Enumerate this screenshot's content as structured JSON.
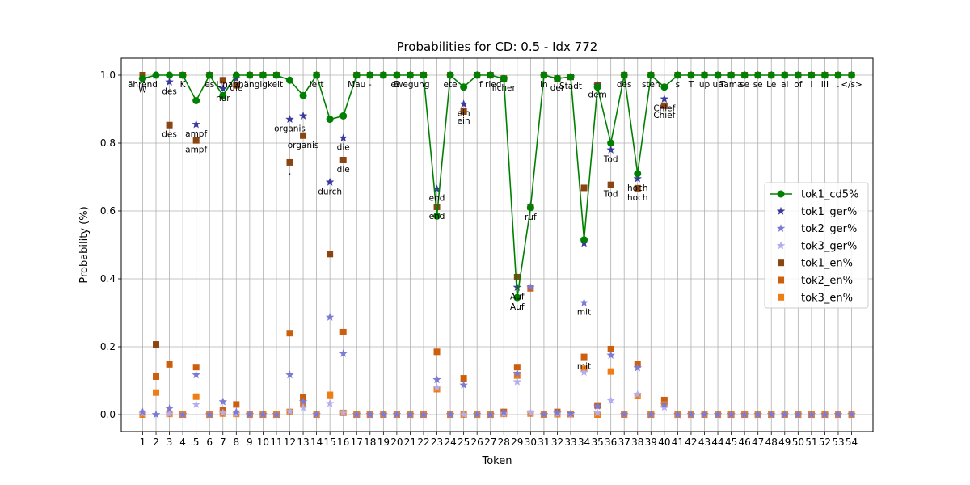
{
  "chart_data": {
    "type": "line",
    "title": "Probabilities for CD: 0.5 - Idx 772",
    "xlabel": "Token",
    "ylabel": "Probability (%)",
    "x": [
      1,
      2,
      3,
      4,
      5,
      6,
      7,
      8,
      9,
      10,
      11,
      12,
      13,
      14,
      15,
      16,
      17,
      18,
      19,
      20,
      21,
      22,
      23,
      24,
      25,
      26,
      27,
      28,
      29,
      30,
      31,
      32,
      33,
      34,
      35,
      36,
      37,
      38,
      39,
      40,
      41,
      42,
      43,
      44,
      45,
      46,
      47,
      48,
      49,
      50,
      51,
      52,
      53,
      54
    ],
    "xlim": [
      -0.6,
      55.6
    ],
    "ylim": [
      -0.05,
      1.05
    ],
    "yticks": [
      0.0,
      0.2,
      0.4,
      0.6,
      0.8,
      1.0
    ],
    "grid": true,
    "legend_position": "center-right",
    "series": [
      {
        "name": "tok1_cd5%",
        "style": "line-circle",
        "color": "#008000",
        "values": [
          0.99,
          1.0,
          1.0,
          1.0,
          0.925,
          1.0,
          0.94,
          1.0,
          1.0,
          1.0,
          1.0,
          0.985,
          0.94,
          1.0,
          0.87,
          0.88,
          1.0,
          1.0,
          1.0,
          1.0,
          1.0,
          1.0,
          0.585,
          1.0,
          0.965,
          1.0,
          1.0,
          0.99,
          0.345,
          0.61,
          1.0,
          0.99,
          0.995,
          0.515,
          0.965,
          0.8,
          1.0,
          0.71,
          1.0,
          0.965,
          1.0,
          1.0,
          1.0,
          1.0,
          1.0,
          1.0,
          1.0,
          1.0,
          1.0,
          1.0,
          1.0,
          1.0,
          1.0,
          1.0
        ]
      },
      {
        "name": "tok1_ger%",
        "style": "star",
        "color": "#3a3a9e",
        "values": [
          0.985,
          1.0,
          0.98,
          1.0,
          0.855,
          1.0,
          0.96,
          0.99,
          1.0,
          1.0,
          1.0,
          0.87,
          0.88,
          1.0,
          0.685,
          0.815,
          1.0,
          1.0,
          1.0,
          1.0,
          1.0,
          1.0,
          0.665,
          1.0,
          0.915,
          1.0,
          1.0,
          0.99,
          0.375,
          0.615,
          1.0,
          0.99,
          0.995,
          0.505,
          0.97,
          0.78,
          1.0,
          0.695,
          1.0,
          0.93,
          1.0,
          1.0,
          1.0,
          1.0,
          1.0,
          1.0,
          1.0,
          1.0,
          1.0,
          1.0,
          1.0,
          1.0,
          1.0,
          1.0
        ]
      },
      {
        "name": "tok2_ger%",
        "style": "star",
        "color": "#7b7bd6",
        "values": [
          0.008,
          0.0,
          0.018,
          0.0,
          0.117,
          0.0,
          0.038,
          0.008,
          0.0,
          0.0,
          0.0,
          0.117,
          0.038,
          0.0,
          0.287,
          0.18,
          0.0,
          0.0,
          0.0,
          0.0,
          0.0,
          0.0,
          0.103,
          0.0,
          0.087,
          0.0,
          0.0,
          0.008,
          0.122,
          0.375,
          0.0,
          0.005,
          0.003,
          0.33,
          0.025,
          0.175,
          0.0,
          0.138,
          0.0,
          0.03,
          0.0,
          0.0,
          0.0,
          0.0,
          0.0,
          0.0,
          0.0,
          0.0,
          0.0,
          0.0,
          0.0,
          0.0,
          0.0,
          0.0
        ]
      },
      {
        "name": "tok3_ger%",
        "style": "star",
        "color": "#b3aef2",
        "values": [
          0.003,
          0.0,
          0.002,
          0.0,
          0.03,
          0.0,
          0.005,
          0.002,
          0.0,
          0.0,
          0.0,
          0.01,
          0.02,
          0.0,
          0.033,
          0.005,
          0.0,
          0.0,
          0.0,
          0.0,
          0.0,
          0.0,
          0.08,
          0.0,
          0.0,
          0.0,
          0.0,
          0.002,
          0.097,
          0.005,
          0.0,
          0.002,
          0.001,
          0.125,
          0.005,
          0.042,
          0.0,
          0.06,
          0.0,
          0.022,
          0.0,
          0.0,
          0.0,
          0.0,
          0.0,
          0.0,
          0.0,
          0.0,
          0.0,
          0.0,
          0.0,
          0.0,
          0.0,
          0.0
        ]
      },
      {
        "name": "tok1_en%",
        "style": "square",
        "color": "#8b4513",
        "values": [
          1.0,
          0.207,
          0.853,
          1.0,
          0.808,
          1.0,
          0.985,
          0.97,
          1.0,
          1.0,
          1.0,
          0.743,
          0.822,
          1.0,
          0.473,
          0.75,
          1.0,
          1.0,
          1.0,
          1.0,
          1.0,
          1.0,
          0.612,
          1.0,
          0.893,
          1.0,
          1.0,
          0.99,
          0.405,
          0.612,
          1.0,
          0.99,
          0.995,
          0.668,
          0.97,
          0.677,
          1.0,
          0.667,
          1.0,
          0.91,
          1.0,
          1.0,
          1.0,
          1.0,
          1.0,
          1.0,
          1.0,
          1.0,
          1.0,
          1.0,
          1.0,
          1.0,
          1.0,
          1.0
        ]
      },
      {
        "name": "tok2_en%",
        "style": "square",
        "color": "#cc5f0e",
        "values": [
          0.0,
          0.112,
          0.148,
          0.0,
          0.14,
          0.0,
          0.012,
          0.03,
          0.002,
          0.0,
          0.0,
          0.24,
          0.05,
          0.0,
          0.058,
          0.243,
          0.0,
          0.0,
          0.0,
          0.0,
          0.0,
          0.0,
          0.185,
          0.0,
          0.107,
          0.0,
          0.0,
          0.008,
          0.14,
          0.372,
          0.0,
          0.008,
          0.002,
          0.17,
          0.027,
          0.193,
          0.002,
          0.148,
          0.0,
          0.043,
          0.0,
          0.0,
          0.0,
          0.0,
          0.0,
          0.0,
          0.0,
          0.0,
          0.0,
          0.0,
          0.0,
          0.0,
          0.0,
          0.0
        ]
      },
      {
        "name": "tok3_en%",
        "style": "square",
        "color": "#f07d12",
        "values": [
          0.0,
          0.065,
          0.002,
          0.0,
          0.053,
          0.0,
          0.003,
          0.002,
          0.0,
          0.0,
          0.0,
          0.008,
          0.03,
          0.0,
          0.058,
          0.005,
          0.0,
          0.0,
          0.0,
          0.0,
          0.0,
          0.0,
          0.075,
          0.0,
          0.0,
          0.0,
          0.0,
          0.002,
          0.115,
          0.003,
          0.0,
          0.001,
          0.001,
          0.135,
          0.0,
          0.127,
          0.0,
          0.055,
          0.0,
          0.03,
          0.0,
          0.0,
          0.0,
          0.0,
          0.0,
          0.0,
          0.0,
          0.0,
          0.0,
          0.0,
          0.0,
          0.0,
          0.0,
          0.0
        ]
      }
    ],
    "annotations": [
      {
        "x": 1,
        "y": 0.985,
        "text": "W"
      },
      {
        "x": 1,
        "y": 1.0,
        "text": "ährend"
      },
      {
        "x": 3,
        "y": 0.98,
        "text": "des"
      },
      {
        "x": 3,
        "y": 0.853,
        "text": "des"
      },
      {
        "x": 4,
        "y": 1.0,
        "text": "K"
      },
      {
        "x": 5,
        "y": 0.855,
        "text": "ampf"
      },
      {
        "x": 5,
        "y": 0.808,
        "text": "ampf"
      },
      {
        "x": 6,
        "y": 1.0,
        "text": "es"
      },
      {
        "x": 7,
        "y": 0.96,
        "text": "nur"
      },
      {
        "x": 8,
        "y": 0.99,
        "text": "die"
      },
      {
        "x": 9,
        "y": 1.0,
        "text": "Unabhängigkeit"
      },
      {
        "x": 12,
        "y": 0.87,
        "text": "organis"
      },
      {
        "x": 12,
        "y": 0.743,
        "text": ","
      },
      {
        "x": 13,
        "y": 0.822,
        "text": "organis"
      },
      {
        "x": 14,
        "y": 1.0,
        "text": "iert"
      },
      {
        "x": 15,
        "y": 0.685,
        "text": "durch"
      },
      {
        "x": 16,
        "y": 0.815,
        "text": "die"
      },
      {
        "x": 16,
        "y": 0.75,
        "text": "die"
      },
      {
        "x": 17,
        "y": 1.0,
        "text": "Mau"
      },
      {
        "x": 18,
        "y": 1.0,
        "text": "-"
      },
      {
        "x": 20,
        "y": 1.0,
        "text": "B"
      },
      {
        "x": 21,
        "y": 1.0,
        "text": "ewegung"
      },
      {
        "x": 23,
        "y": 0.665,
        "text": "end"
      },
      {
        "x": 23,
        "y": 0.612,
        "text": "end"
      },
      {
        "x": 24,
        "y": 1.0,
        "text": "ete"
      },
      {
        "x": 25,
        "y": 0.915,
        "text": "ein"
      },
      {
        "x": 25,
        "y": 0.893,
        "text": "ein"
      },
      {
        "x": 27,
        "y": 1.0,
        "text": "f ried"
      },
      {
        "x": 28,
        "y": 0.99,
        "text": "licher"
      },
      {
        "x": 29,
        "y": 0.375,
        "text": "Auf"
      },
      {
        "x": 29,
        "y": 0.345,
        "text": "Auf"
      },
      {
        "x": 30,
        "y": 0.61,
        "text": "ruf"
      },
      {
        "x": 31,
        "y": 1.0,
        "text": "in"
      },
      {
        "x": 32,
        "y": 0.99,
        "text": "der"
      },
      {
        "x": 33,
        "y": 0.995,
        "text": "Stadt"
      },
      {
        "x": 34,
        "y": 0.33,
        "text": "mit"
      },
      {
        "x": 34,
        "y": 0.17,
        "text": "mit"
      },
      {
        "x": 35,
        "y": 0.97,
        "text": "dem"
      },
      {
        "x": 36,
        "y": 0.78,
        "text": "Tod"
      },
      {
        "x": 36,
        "y": 0.677,
        "text": "Tod"
      },
      {
        "x": 37,
        "y": 1.0,
        "text": "des"
      },
      {
        "x": 38,
        "y": 0.695,
        "text": "hoch"
      },
      {
        "x": 38,
        "y": 0.667,
        "text": "hoch"
      },
      {
        "x": 39,
        "y": 1.0,
        "text": "sten"
      },
      {
        "x": 40,
        "y": 0.93,
        "text": "Chief"
      },
      {
        "x": 40,
        "y": 0.91,
        "text": "Chief"
      },
      {
        "x": 41,
        "y": 1.0,
        "text": "s"
      },
      {
        "x": 42,
        "y": 1.0,
        "text": "T"
      },
      {
        "x": 43,
        "y": 1.0,
        "text": "up"
      },
      {
        "x": 44,
        "y": 1.0,
        "text": "ua"
      },
      {
        "x": 45,
        "y": 1.0,
        "text": "Tama"
      },
      {
        "x": 46,
        "y": 1.0,
        "text": "se"
      },
      {
        "x": 47,
        "y": 1.0,
        "text": "se"
      },
      {
        "x": 48,
        "y": 1.0,
        "text": "Le"
      },
      {
        "x": 49,
        "y": 1.0,
        "text": "al"
      },
      {
        "x": 50,
        "y": 1.0,
        "text": "of"
      },
      {
        "x": 51,
        "y": 1.0,
        "text": "i"
      },
      {
        "x": 52,
        "y": 1.0,
        "text": "III"
      },
      {
        "x": 53,
        "y": 1.0,
        "text": "."
      },
      {
        "x": 54,
        "y": 1.0,
        "text": "</s>"
      }
    ]
  }
}
